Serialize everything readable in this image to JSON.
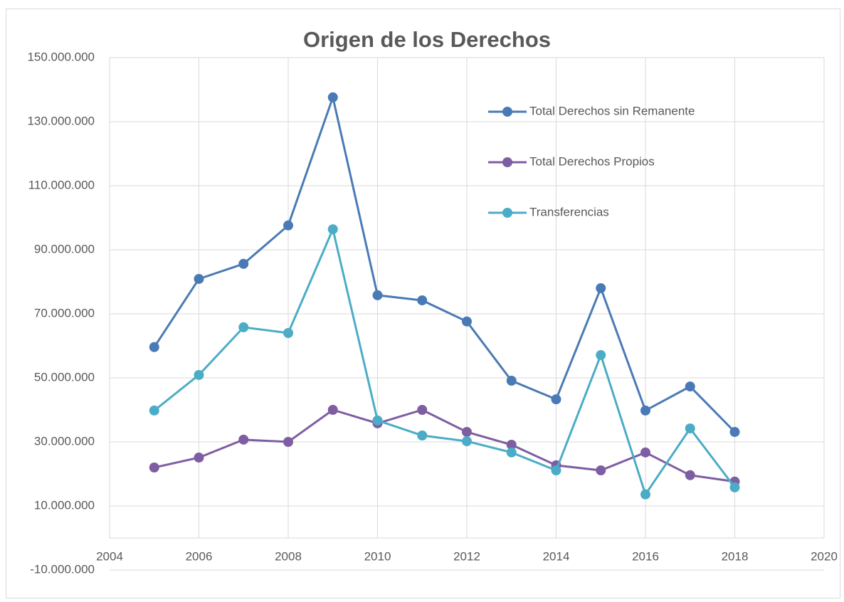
{
  "chart_data": {
    "type": "line",
    "title": "Origen de los Derechos",
    "x": [
      2005,
      2006,
      2007,
      2008,
      2009,
      2010,
      2011,
      2012,
      2013,
      2014,
      2015,
      2016,
      2017,
      2018
    ],
    "series": [
      {
        "name": "Total Derechos sin Remanente",
        "color": "#4a7ab5",
        "values": [
          59600000,
          80900000,
          85600000,
          97600000,
          137600000,
          75800000,
          74200000,
          67600000,
          49100000,
          43300000,
          78000000,
          39800000,
          47300000,
          33100000
        ]
      },
      {
        "name": "Total Derechos Propios",
        "color": "#7e5ea3",
        "values": [
          22000000,
          25100000,
          30700000,
          30000000,
          40000000,
          35800000,
          40000000,
          33100000,
          29100000,
          22700000,
          21100000,
          26700000,
          19600000,
          17600000
        ]
      },
      {
        "name": "Transferencias",
        "color": "#4bacc6",
        "values": [
          39800000,
          50900000,
          65800000,
          64000000,
          96400000,
          36700000,
          32000000,
          30200000,
          26700000,
          21100000,
          57100000,
          13600000,
          34200000,
          15800000
        ]
      }
    ],
    "xlim": [
      2004,
      2020
    ],
    "xticks": [
      2004,
      2006,
      2008,
      2010,
      2012,
      2014,
      2016,
      2018,
      2020
    ],
    "ylim": [
      -10000000,
      150000000
    ],
    "yticks": [
      {
        "value": -10000000,
        "label": "-10.000.000"
      },
      {
        "value": 10000000,
        "label": "10.000.000"
      },
      {
        "value": 30000000,
        "label": "30.000.000"
      },
      {
        "value": 50000000,
        "label": "50.000.000"
      },
      {
        "value": 70000000,
        "label": "70.000.000"
      },
      {
        "value": 90000000,
        "label": "90.000.000"
      },
      {
        "value": 110000000,
        "label": "110.000.000"
      },
      {
        "value": 130000000,
        "label": "130.000.000"
      },
      {
        "value": 150000000,
        "label": "150.000.000"
      }
    ],
    "grid": true,
    "legend": "top-right"
  }
}
